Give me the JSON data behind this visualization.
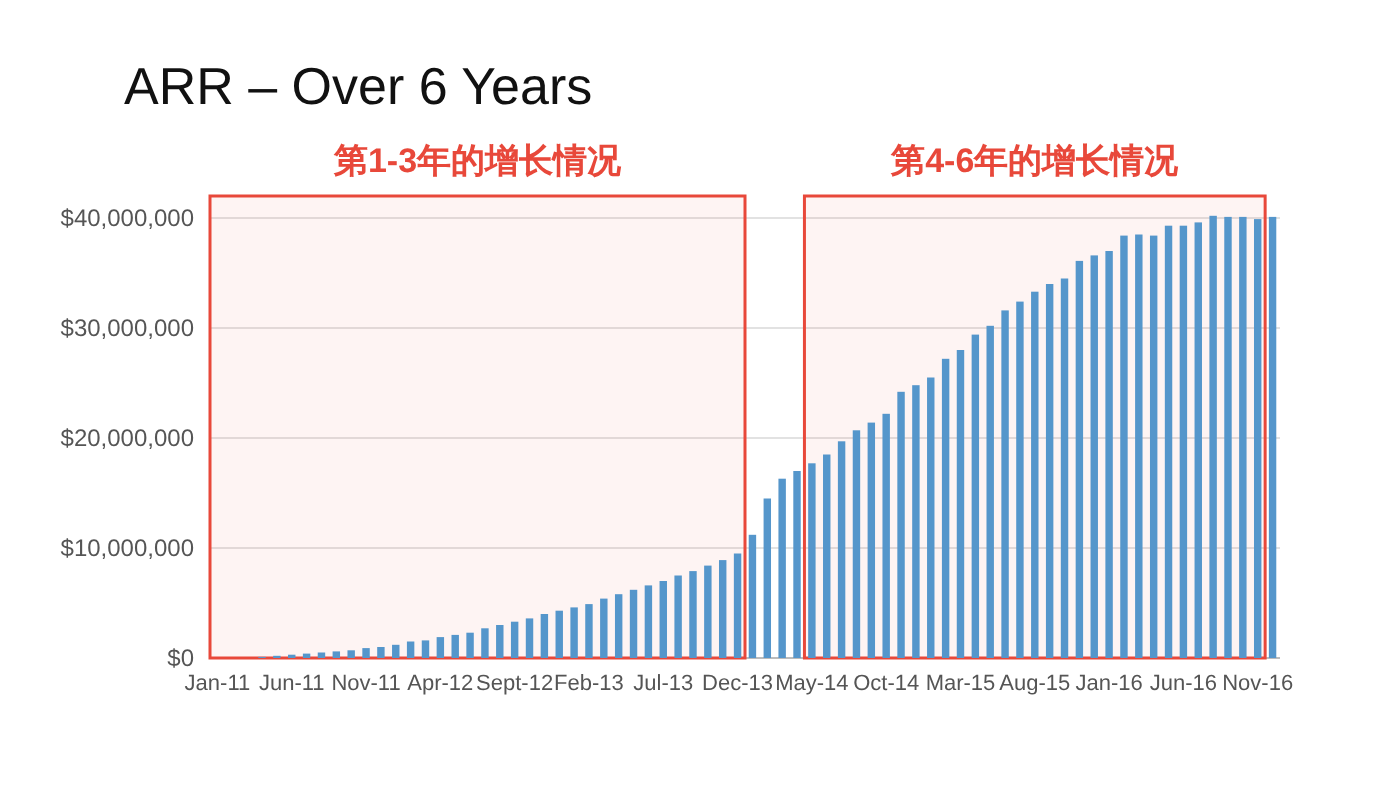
{
  "chart_data": {
    "type": "bar",
    "title": "ARR – Over 6 Years",
    "categories": [
      "Jan-11",
      null,
      null,
      null,
      null,
      "Jun-11",
      null,
      null,
      null,
      null,
      "Nov-11",
      null,
      null,
      null,
      null,
      "Apr-12",
      null,
      null,
      null,
      null,
      "Sept-12",
      null,
      null,
      null,
      null,
      "Feb-13",
      null,
      null,
      null,
      null,
      "Jul-13",
      null,
      null,
      null,
      null,
      "Dec-13",
      null,
      null,
      null,
      null,
      "May-14",
      null,
      null,
      null,
      null,
      "Oct-14",
      null,
      null,
      null,
      null,
      "Mar-15",
      null,
      null,
      null,
      null,
      "Aug-15",
      null,
      null,
      null,
      null,
      "Jan-16",
      null,
      null,
      null,
      null,
      "Jun-16",
      null,
      null,
      null,
      null,
      "Nov-16",
      null
    ],
    "values": [
      0,
      0,
      0,
      100000,
      200000,
      300000,
      400000,
      500000,
      600000,
      700000,
      900000,
      1000000,
      1200000,
      1500000,
      1600000,
      1900000,
      2100000,
      2300000,
      2700000,
      3000000,
      3300000,
      3600000,
      4000000,
      4300000,
      4600000,
      4900000,
      5400000,
      5800000,
      6200000,
      6600000,
      7000000,
      7500000,
      7900000,
      8400000,
      8900000,
      9500000,
      11200000,
      14500000,
      16300000,
      17000000,
      17700000,
      18500000,
      19700000,
      20700000,
      21400000,
      22200000,
      24200000,
      24800000,
      25500000,
      27200000,
      28000000,
      29400000,
      30200000,
      31600000,
      32400000,
      33300000,
      34000000,
      34500000,
      36100000,
      36600000,
      37000000,
      38400000,
      38500000,
      38400000,
      39300000,
      39300000,
      39600000,
      40200000,
      40100000,
      40100000,
      39900000,
      40100000
    ],
    "color": "#5596cb",
    "ylim": [
      0,
      42000000
    ],
    "yticks": [
      {
        "value": 0,
        "label": "$0"
      },
      {
        "value": 10000000,
        "label": "$10,000,000"
      },
      {
        "value": 20000000,
        "label": "$20,000,000"
      },
      {
        "value": 30000000,
        "label": "$30,000,000"
      },
      {
        "value": 40000000,
        "label": "$40,000,000"
      }
    ],
    "grid": "y",
    "bands": [
      {
        "axis": "x",
        "from": "Jan-11",
        "to": "Dec-13",
        "label": "第1-3年的增长情况",
        "color": "#e8483a"
      },
      {
        "axis": "x",
        "from": "May-14",
        "to": "Nov-16",
        "label": "第4-6年的增长情况",
        "color": "#e8483a"
      }
    ]
  }
}
